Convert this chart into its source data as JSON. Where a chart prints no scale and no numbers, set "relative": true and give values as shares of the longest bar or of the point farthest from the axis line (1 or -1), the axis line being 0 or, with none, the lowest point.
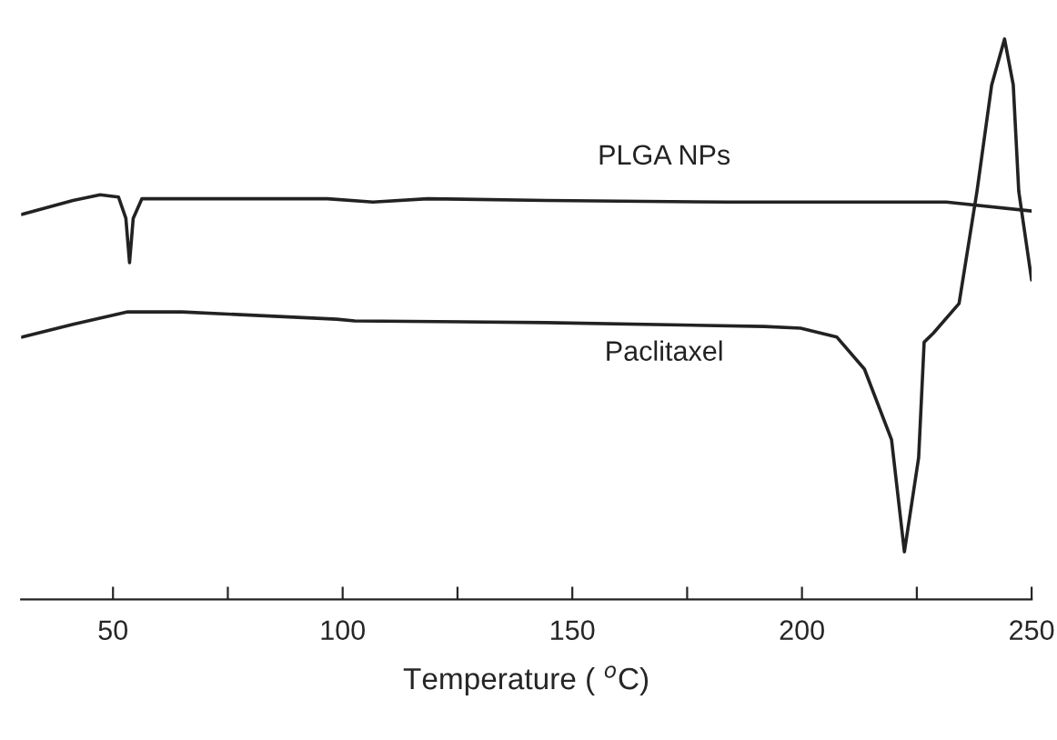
{
  "chart_data": {
    "type": "line",
    "relative": true,
    "xlabel": "Temperature ( $^{o}$C)",
    "xlim": [
      30,
      250
    ],
    "xticks": [
      50,
      {
        "value": 75,
        "label": null
      },
      100,
      {
        "value": 125,
        "label": null
      },
      150,
      {
        "value": 175,
        "label": null
      },
      200,
      {
        "value": 225,
        "label": null
      },
      250
    ],
    "grid": false,
    "legend": false,
    "marker": "none",
    "line_style": "solid",
    "series": [
      {
        "name": "PLGA NPs",
        "color": "#222222",
        "x": [
          30.2,
          41.3,
          47.2,
          51.2,
          52.8,
          53.6,
          54.4,
          56.3,
          59.1,
          96.7,
          106.6,
          118.5,
          144.3,
          183.9,
          215.5,
          231.4,
          250
        ],
        "values": [
          0.687,
          0.712,
          0.722,
          0.718,
          0.68,
          0.601,
          0.68,
          0.715,
          0.715,
          0.715,
          0.709,
          0.715,
          0.712,
          0.709,
          0.709,
          0.709,
          0.693
        ]
      },
      {
        "name": "Paclitaxel",
        "color": "#222222",
        "x": [
          30.2,
          41.3,
          53.2,
          65.0,
          98.7,
          102.6,
          144.3,
          191.8,
          199.7,
          207.6,
          213.6,
          219.5,
          222.3,
          225.4,
          226.6,
          228.6,
          234.2,
          238.1,
          241.3,
          244.1,
          246.0,
          247.2,
          250
        ],
        "values": [
          0.468,
          0.491,
          0.513,
          0.513,
          0.5,
          0.497,
          0.494,
          0.487,
          0.484,
          0.468,
          0.411,
          0.285,
          0.085,
          0.253,
          0.459,
          0.475,
          0.528,
          0.728,
          0.918,
          1.0,
          0.918,
          0.728,
          0.57
        ]
      }
    ]
  }
}
